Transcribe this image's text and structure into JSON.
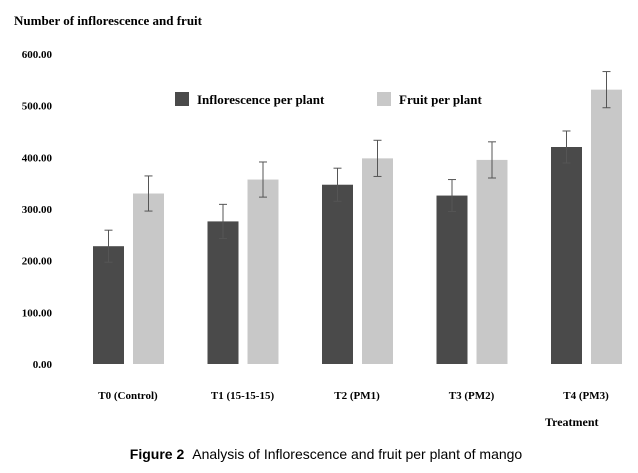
{
  "chart_data": {
    "type": "bar",
    "ylabel": "Number of inflorescence and fruit",
    "xlabel": "Treatment",
    "categories": [
      "T0 (Control)",
      "T1 (15-15-15)",
      "T2 (PM1)",
      "T3 (PM2)",
      "T4 (PM3)"
    ],
    "ylim": [
      0,
      600
    ],
    "yticks": [
      "0.00",
      "100.00",
      "200.00",
      "300.00",
      "400.00",
      "500.00",
      "600.00"
    ],
    "series": [
      {
        "name": "Inflorescence per plant",
        "color": "#4a4a4a",
        "values": [
          228,
          276,
          347,
          326,
          420
        ],
        "errors": [
          31,
          33,
          32,
          31,
          31
        ]
      },
      {
        "name": "Fruit per plant",
        "color": "#c8c8c8",
        "values": [
          330,
          357,
          398,
          395,
          531
        ],
        "errors": [
          34,
          34,
          35,
          35,
          35
        ]
      }
    ],
    "legend_position": "top-center",
    "grid": false
  },
  "caption": {
    "label": "Figure 2",
    "text": "Analysis of Inflorescence and fruit per plant of mango"
  }
}
